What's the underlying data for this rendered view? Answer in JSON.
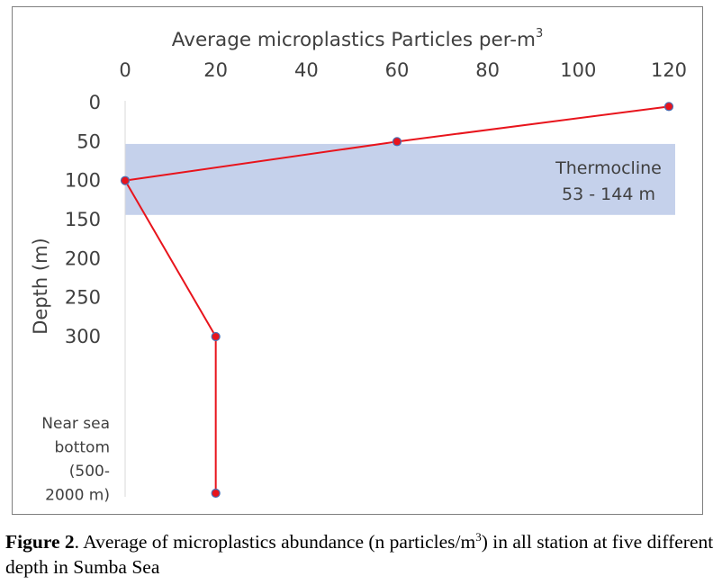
{
  "chart_data": {
    "type": "line",
    "title": "Average microplastics Particles per-m",
    "title_superscript": "3",
    "ylabel": "Depth (m)",
    "x_axis_position": "top",
    "xlim": [
      0,
      120
    ],
    "x_ticks": [
      "0",
      "20",
      "40",
      "60",
      "80",
      "100",
      "120"
    ],
    "y_inverted": true,
    "ylim": [
      0,
      300
    ],
    "y_ticks": [
      "0",
      "50",
      "100",
      "150",
      "200",
      "250",
      "300"
    ],
    "bottom_category_label": [
      "Near sea",
      "bottom",
      "(500-",
      "2000 m)"
    ],
    "series": [
      {
        "color": "#e8141c",
        "marker_color": "#e8141c",
        "marker_edge": "#4a6fb5",
        "points": [
          {
            "x": 120,
            "y": 5
          },
          {
            "x": 60,
            "y": 50
          },
          {
            "x": 0,
            "y": 100
          },
          {
            "x": 20,
            "y": 300
          },
          {
            "x": 20,
            "y": "Near sea bottom (500-2000 m)"
          }
        ]
      }
    ],
    "band": {
      "y_from": 53,
      "y_to": 144,
      "color": "#c5d1eb",
      "label_line1": "Thermocline",
      "label_line2": "53 - 144 m"
    },
    "grid": false
  },
  "caption": {
    "figure_label": "Figure 2",
    "text_before_sup": ". Average of microplastics abundance (n particles/m",
    "sup": "3",
    "text_after_sup": ") in all station at five different depth in Sumba Sea"
  }
}
